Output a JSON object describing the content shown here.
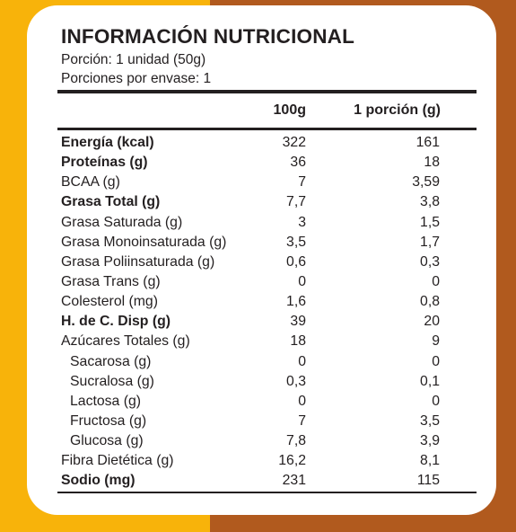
{
  "panel": {
    "title": "INFORMACIÓN NUTRICIONAL",
    "portion": "Porción: 1 unidad (50g)",
    "portions_per_pack": "Porciones por envase: 1",
    "columns": [
      "100g",
      "1 porción (g)"
    ]
  },
  "colors": {
    "left_band": "#F8B30A",
    "right_band": "#B15A1E",
    "card": "#FFFFFF",
    "text": "#231F20"
  },
  "rows": [
    {
      "label": "Energía (kcal)",
      "v100": "322",
      "vpor": "161",
      "bold": true
    },
    {
      "label": "Proteínas (g)",
      "v100": "36",
      "vpor": "18",
      "bold": true
    },
    {
      "label": "BCAA (g)",
      "v100": "7",
      "vpor": "3,59"
    },
    {
      "label": "Grasa Total (g)",
      "v100": "7,7",
      "vpor": "3,8",
      "bold": true
    },
    {
      "label": "Grasa Saturada (g)",
      "v100": "3",
      "vpor": "1,5"
    },
    {
      "label": "Grasa Monoinsaturada (g)",
      "v100": "3,5",
      "vpor": "1,7"
    },
    {
      "label": "Grasa Poliinsaturada (g)",
      "v100": "0,6",
      "vpor": "0,3"
    },
    {
      "label": "Grasa Trans (g)",
      "v100": "0",
      "vpor": "0"
    },
    {
      "label": "Colesterol (mg)",
      "v100": "1,6",
      "vpor": "0,8"
    },
    {
      "label": "H. de C. Disp (g)",
      "v100": "39",
      "vpor": "20",
      "bold": true
    },
    {
      "label": "Azúcares Totales (g)",
      "v100": "18",
      "vpor": "9"
    },
    {
      "label": "Sacarosa (g)",
      "v100": "0",
      "vpor": "0",
      "indent": true
    },
    {
      "label": "Sucralosa (g)",
      "v100": "0,3",
      "vpor": "0,1",
      "indent": true
    },
    {
      "label": "Lactosa (g)",
      "v100": "0",
      "vpor": "0",
      "indent": true
    },
    {
      "label": "Fructosa (g)",
      "v100": "7",
      "vpor": "3,5",
      "indent": true
    },
    {
      "label": "Glucosa (g)",
      "v100": "7,8",
      "vpor": "3,9",
      "indent": true
    },
    {
      "label": "Fibra Dietética (g)",
      "v100": "16,2",
      "vpor": "8,1"
    },
    {
      "label": "Sodio (mg)",
      "v100": "231",
      "vpor": "115",
      "bold": true
    }
  ]
}
